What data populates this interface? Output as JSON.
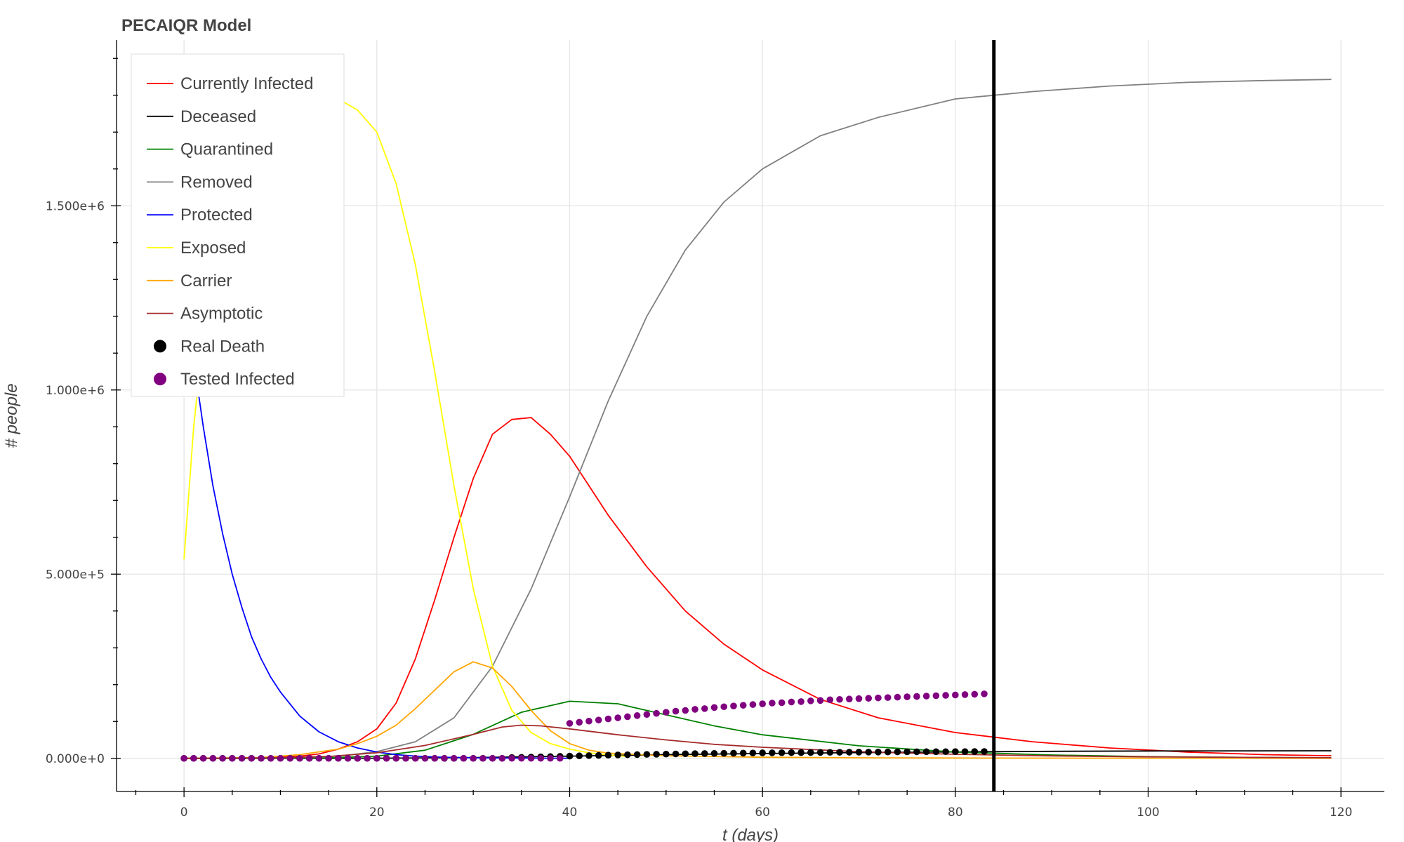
{
  "chart_data": {
    "type": "line",
    "title": "PECAIQR Model",
    "xlabel": "t (days)",
    "ylabel": "# people",
    "xlim": [
      -7,
      124.5
    ],
    "ylim": [
      -90000,
      1950000
    ],
    "xticks": [
      0,
      20,
      40,
      60,
      80,
      100,
      120
    ],
    "xtick_labels": [
      "0",
      "20",
      "40",
      "60",
      "80",
      "100",
      "120"
    ],
    "yticks": [
      0,
      500000,
      1000000,
      1500000
    ],
    "ytick_labels": [
      "0.000e+0",
      "5.000e+5",
      "1.000e+6",
      "1.500e+6"
    ],
    "grid": true,
    "legend_position": "top-left",
    "vertical_line": {
      "x": 84,
      "color": "#000000"
    },
    "series": [
      {
        "name": "Currently Infected",
        "kind": "line",
        "color": "#ff0000",
        "x": [
          0,
          4,
          8,
          12,
          14,
          16,
          18,
          20,
          22,
          24,
          26,
          28,
          30,
          32,
          34,
          36,
          38,
          40,
          44,
          48,
          52,
          56,
          60,
          66,
          72,
          80,
          88,
          96,
          104,
          112,
          119
        ],
        "y": [
          0,
          300,
          1500,
          6000,
          12000,
          25000,
          45000,
          80000,
          150000,
          270000,
          430000,
          600000,
          760000,
          880000,
          920000,
          925000,
          880000,
          820000,
          660000,
          520000,
          400000,
          310000,
          240000,
          160000,
          110000,
          70000,
          45000,
          28000,
          17000,
          10000,
          7000
        ]
      },
      {
        "name": "Deceased",
        "kind": "line",
        "color": "#000000",
        "x": [
          0,
          10,
          20,
          30,
          40,
          50,
          60,
          70,
          80,
          90,
          100,
          110,
          119
        ],
        "y": [
          0,
          0,
          200,
          2000,
          6000,
          10000,
          13000,
          15500,
          17500,
          19000,
          20000,
          20300,
          20500
        ]
      },
      {
        "name": "Quarantined",
        "kind": "line",
        "color": "#008000",
        "x": [
          0,
          10,
          15,
          20,
          25,
          30,
          35,
          40,
          45,
          50,
          55,
          60,
          70,
          80,
          90,
          100,
          110,
          119
        ],
        "y": [
          0,
          300,
          1500,
          6000,
          22000,
          65000,
          125000,
          155000,
          148000,
          118000,
          88000,
          64000,
          34000,
          17000,
          9000,
          4500,
          2500,
          1500
        ]
      },
      {
        "name": "Removed",
        "kind": "line",
        "color": "#808080",
        "x": [
          0,
          10,
          16,
          20,
          24,
          28,
          32,
          36,
          40,
          44,
          48,
          52,
          56,
          60,
          66,
          72,
          80,
          88,
          96,
          104,
          112,
          119
        ],
        "y": [
          0,
          1000,
          6000,
          18000,
          45000,
          110000,
          250000,
          460000,
          710000,
          970000,
          1200000,
          1380000,
          1510000,
          1600000,
          1690000,
          1740000,
          1790000,
          1810000,
          1825000,
          1835000,
          1840000,
          1843000
        ]
      },
      {
        "name": "Protected",
        "kind": "line",
        "color": "#0000ff",
        "x": [
          0,
          1,
          2,
          3,
          4,
          5,
          6,
          7,
          8,
          9,
          10,
          12,
          14,
          16,
          18,
          20,
          22,
          24,
          26,
          30,
          34,
          38,
          40
        ],
        "y": [
          1260000,
          1080000,
          900000,
          740000,
          610000,
          500000,
          410000,
          330000,
          270000,
          220000,
          180000,
          115000,
          72000,
          45000,
          28000,
          17000,
          10000,
          6000,
          3500,
          1500,
          600,
          200,
          100
        ]
      },
      {
        "name": "Exposed",
        "kind": "line",
        "color": "#ffff00",
        "x": [
          0,
          1,
          2,
          4,
          6,
          8,
          10,
          12,
          14,
          16,
          18,
          20,
          22,
          24,
          26,
          28,
          30,
          32,
          34,
          36,
          38,
          40,
          42,
          44,
          46
        ],
        "y": [
          540000,
          900000,
          1150000,
          1400000,
          1570000,
          1680000,
          1750000,
          1790000,
          1800000,
          1790000,
          1760000,
          1700000,
          1560000,
          1340000,
          1050000,
          740000,
          460000,
          250000,
          130000,
          70000,
          40000,
          25000,
          15000,
          9000,
          5000
        ]
      },
      {
        "name": "Carrier",
        "kind": "line",
        "color": "#ffa500",
        "x": [
          0,
          8,
          12,
          16,
          18,
          20,
          22,
          24,
          26,
          28,
          30,
          32,
          34,
          36,
          38,
          40,
          42,
          44,
          50,
          60,
          70,
          80,
          100,
          119
        ],
        "y": [
          0,
          2000,
          10000,
          25000,
          40000,
          60000,
          90000,
          135000,
          185000,
          235000,
          262000,
          245000,
          195000,
          130000,
          75000,
          40000,
          22000,
          14000,
          7000,
          3000,
          1500,
          800,
          300,
          100
        ]
      },
      {
        "name": "Asymptotic",
        "kind": "line",
        "color": "#a52a2a",
        "x": [
          0,
          10,
          15,
          20,
          25,
          30,
          33,
          35,
          37,
          40,
          45,
          50,
          55,
          60,
          70,
          80,
          90,
          100,
          110,
          119
        ],
        "y": [
          0,
          1500,
          5000,
          15000,
          35000,
          65000,
          85000,
          90000,
          88000,
          80000,
          64000,
          50000,
          38000,
          30000,
          18000,
          11000,
          6500,
          4000,
          2500,
          1500
        ]
      },
      {
        "name": "Real Death",
        "kind": "points",
        "color": "#000000",
        "x_start": 0,
        "x_end": 83,
        "y": [
          0,
          0,
          0,
          0,
          0,
          0,
          0,
          0,
          0,
          0,
          0,
          0,
          0,
          0,
          0,
          0,
          0,
          0,
          0,
          0,
          0,
          0,
          0,
          0,
          0,
          0,
          0,
          0,
          0,
          0,
          0,
          0,
          0,
          0,
          2000,
          2600,
          3200,
          3900,
          4600,
          5300,
          6000,
          6700,
          7400,
          8000,
          8600,
          9200,
          9700,
          10200,
          10700,
          11100,
          11500,
          11900,
          12300,
          12700,
          13000,
          13300,
          13600,
          13900,
          14200,
          14500,
          14800,
          15000,
          15200,
          15400,
          15600,
          15800,
          16000,
          16200,
          16400,
          16600,
          16800,
          16900,
          17000,
          17200,
          17400,
          17600,
          17800,
          17900,
          18000,
          18100,
          18200,
          18300,
          18400,
          18500
        ]
      },
      {
        "name": "Tested Infected",
        "kind": "points",
        "color": "#800080",
        "x_start": 0,
        "x_end": 83,
        "y": [
          0,
          0,
          0,
          0,
          0,
          0,
          0,
          0,
          0,
          0,
          0,
          0,
          0,
          0,
          0,
          0,
          0,
          0,
          0,
          0,
          0,
          0,
          0,
          0,
          0,
          0,
          0,
          0,
          0,
          0,
          0,
          0,
          0,
          0,
          0,
          0,
          0,
          0,
          0,
          0,
          95000,
          98000,
          101000,
          104000,
          107000,
          110000,
          113000,
          116000,
          119000,
          122000,
          125000,
          128000,
          130000,
          133000,
          135000,
          138000,
          140000,
          142000,
          144000,
          146000,
          148000,
          150000,
          151000,
          153000,
          154000,
          156000,
          157000,
          159000,
          160000,
          161000,
          162000,
          163000,
          164000,
          165000,
          166000,
          167000,
          168000,
          169000,
          170000,
          171000,
          172000,
          173000,
          174000,
          175000
        ]
      }
    ]
  }
}
